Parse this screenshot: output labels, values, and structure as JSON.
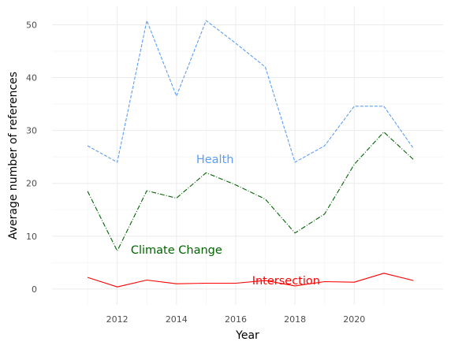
{
  "chart_data": {
    "type": "line",
    "title": "",
    "xlabel": "Year",
    "ylabel": "Average number of references",
    "x": [
      2011,
      2012,
      2013,
      2014,
      2015,
      2016,
      2017,
      2018,
      2019,
      2020,
      2021,
      2022
    ],
    "xlim": [
      2009.8,
      2023.0
    ],
    "ylim": [
      -3,
      53.5
    ],
    "x_ticks": [
      2012,
      2014,
      2016,
      2018,
      2020
    ],
    "y_ticks": [
      0,
      10,
      20,
      30,
      40,
      50
    ],
    "grid": true,
    "legend": "none (series labeled directly on the plot)",
    "series": [
      {
        "name": "Health",
        "color": "#5b9df5",
        "line_style": "dashed",
        "values": [
          27.1,
          24.0,
          50.8,
          36.5,
          50.8,
          46.5,
          42.0,
          24.0,
          27.1,
          34.6,
          34.6,
          26.6
        ],
        "label_anchor": [
          2015.3,
          24.6
        ]
      },
      {
        "name": "Climate Change",
        "color": "#006400",
        "line_style": "dashdot",
        "values": [
          18.5,
          7.2,
          18.6,
          17.2,
          22.0,
          19.7,
          17.0,
          10.6,
          14.2,
          23.6,
          29.7,
          24.5
        ],
        "label_anchor": [
          2014.0,
          7.4
        ]
      },
      {
        "name": "Intersection",
        "color": "#ff0000",
        "line_style": "solid",
        "values": [
          2.2,
          0.4,
          1.7,
          1.0,
          1.1,
          1.1,
          1.6,
          0.6,
          1.4,
          1.3,
          3.0,
          1.6
        ],
        "label_anchor": [
          2017.7,
          1.6
        ]
      }
    ]
  }
}
